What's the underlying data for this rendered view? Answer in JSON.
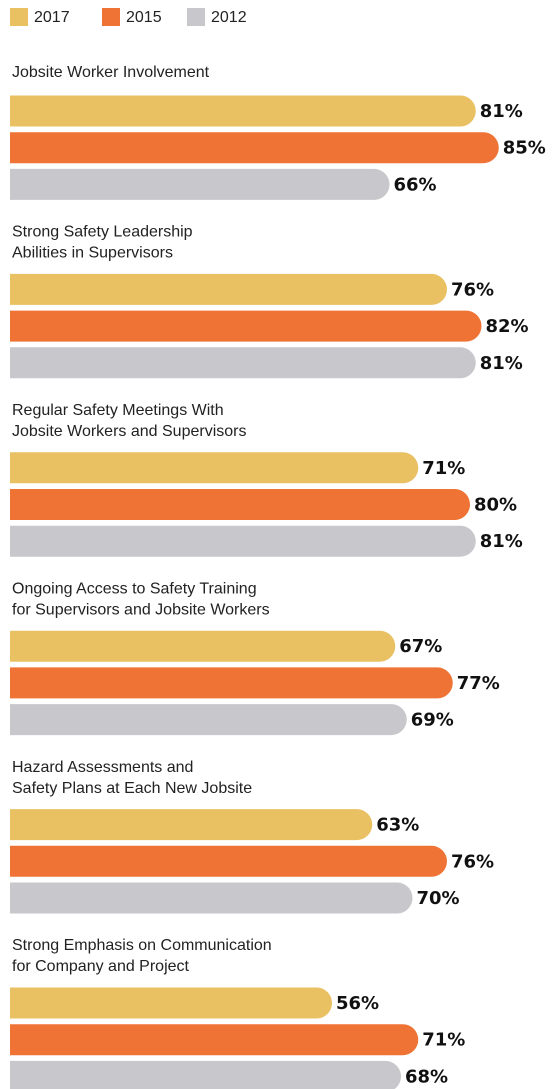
{
  "chart_data": {
    "type": "bar",
    "orientation": "horizontal",
    "categories": [
      [
        "Jobsite Worker Involvement"
      ],
      [
        "Strong Safety Leadership",
        "Abilities in Supervisors"
      ],
      [
        "Regular Safety Meetings With",
        "Jobsite Workers and Supervisors"
      ],
      [
        "Ongoing Access to Safety Training",
        "for Supervisors and Jobsite Workers"
      ],
      [
        "Hazard Assessments and",
        "Safety Plans at Each New Jobsite"
      ],
      [
        "Strong Emphasis on Communication",
        "for Company and Project"
      ]
    ],
    "series": [
      {
        "name": "2017",
        "color": "#e9c062",
        "values": [
          81,
          76,
          71,
          67,
          63,
          56
        ],
        "value_labels": [
          "81%",
          "76%",
          "71%",
          "67%",
          "63%",
          "56%"
        ]
      },
      {
        "name": "2015",
        "color": "#ee7334",
        "values": [
          85,
          82,
          80,
          77,
          76,
          71
        ],
        "value_labels": [
          "85%",
          "82%",
          "80%",
          "77%",
          "76%",
          "71%"
        ]
      },
      {
        "name": "2012",
        "color": "#c7c7cc",
        "values": [
          66,
          81,
          81,
          69,
          70,
          68
        ],
        "value_labels": [
          "66%",
          "81%",
          "81%",
          "69%",
          "70%",
          "68%"
        ]
      }
    ],
    "legend": "top-left"
  }
}
